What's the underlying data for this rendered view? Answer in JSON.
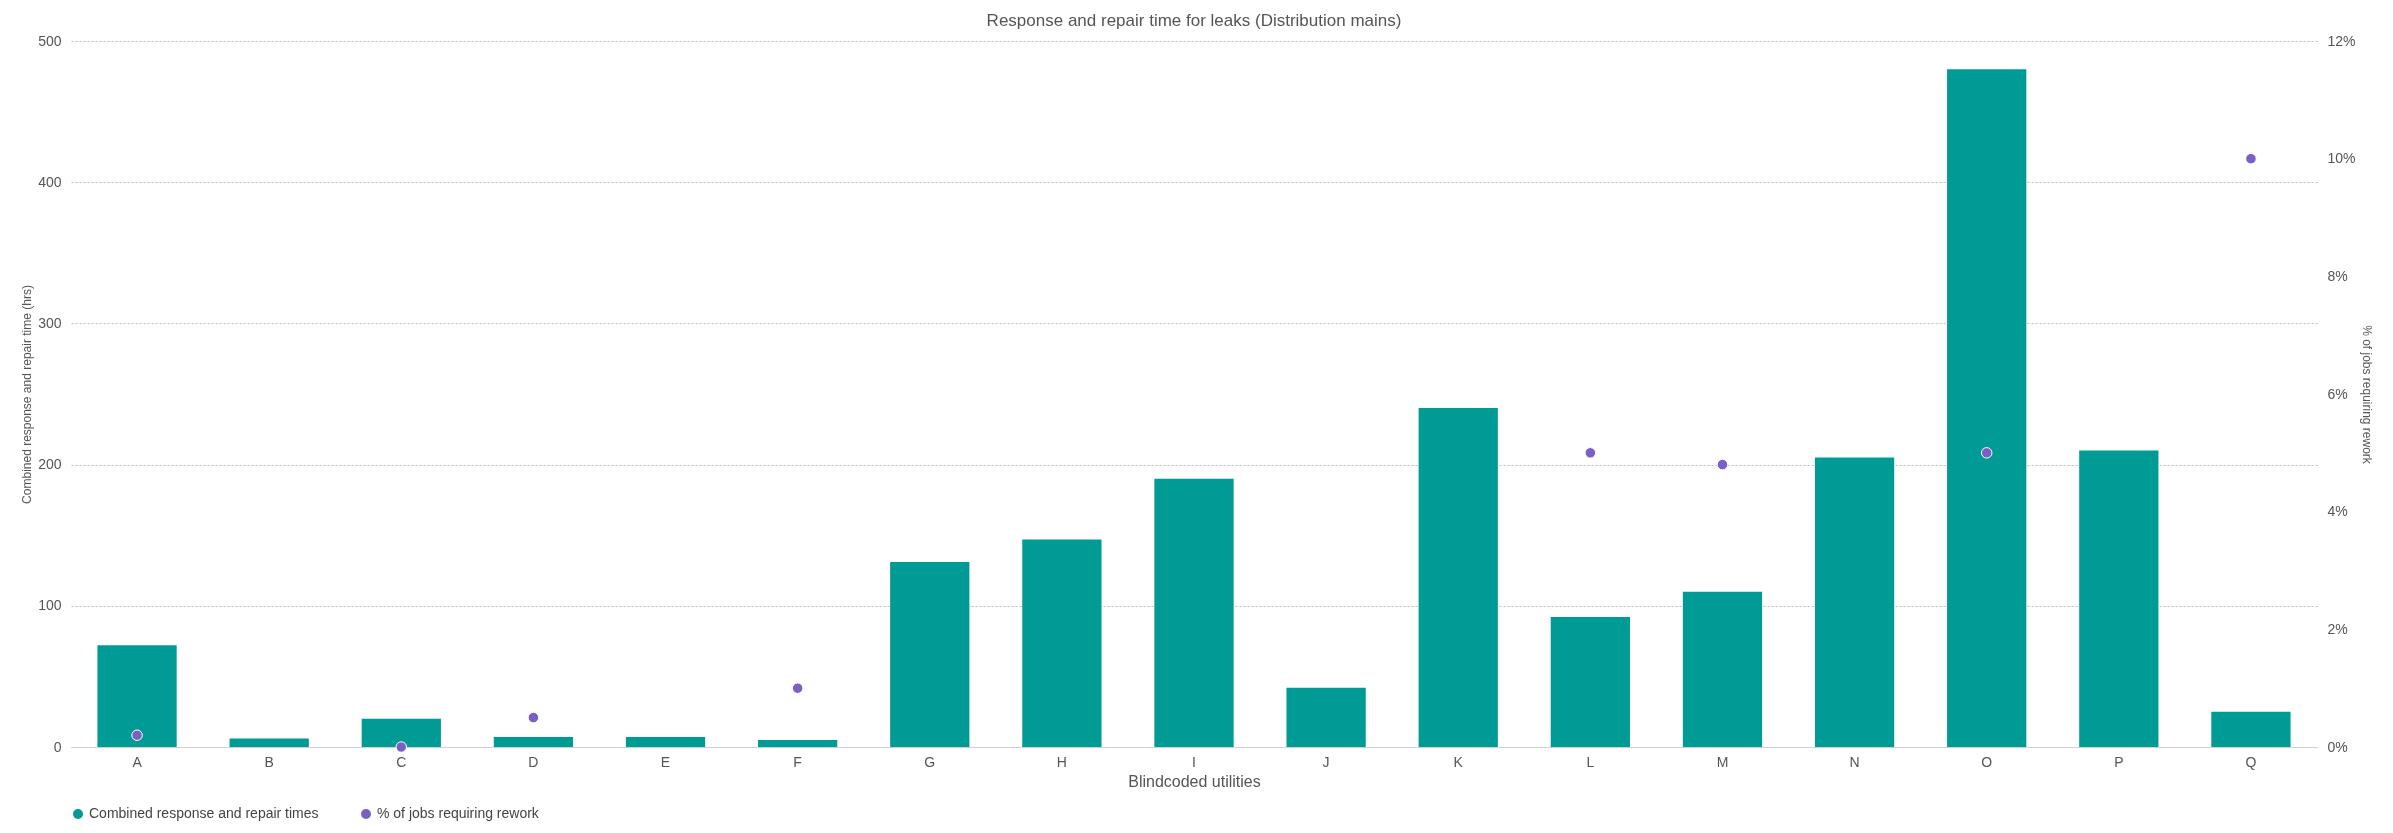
{
  "chart_data": {
    "type": "bar",
    "title": "Response and repair time for leaks (Distribution mains)",
    "xlabel": "Blindcoded utilities",
    "ylabel": "Combined response and repair time (hrs)",
    "y2label": "% of jobs requiring rework",
    "categories": [
      "A",
      "B",
      "C",
      "D",
      "E",
      "F",
      "G",
      "H",
      "I",
      "J",
      "K",
      "L",
      "M",
      "N",
      "O",
      "P",
      "Q"
    ],
    "series": [
      {
        "name": "Combined response and repair times",
        "color": "#009b95",
        "values": [
          72,
          6,
          20,
          7,
          7,
          5,
          131,
          147,
          190,
          42,
          240,
          92,
          110,
          205,
          480,
          210,
          25
        ]
      },
      {
        "name": "% of jobs requiring rework",
        "type": "scatter",
        "axis": "y2",
        "color": "#7b5fc4",
        "values": [
          0.2,
          null,
          0,
          0.5,
          null,
          1.0,
          null,
          null,
          null,
          null,
          null,
          5.0,
          4.8,
          null,
          5.0,
          null,
          10.0
        ]
      }
    ],
    "ylim": [
      0,
      500
    ],
    "yticks": [
      0,
      100,
      200,
      300,
      400,
      500
    ],
    "y2lim": [
      0,
      12
    ],
    "y2ticks": [
      {
        "value": 0,
        "label": "0%"
      },
      {
        "value": 2,
        "label": "2%"
      },
      {
        "value": 4,
        "label": "4%"
      },
      {
        "value": 6,
        "label": "6%"
      },
      {
        "value": 8,
        "label": "8%"
      },
      {
        "value": 10,
        "label": "10%"
      },
      {
        "value": 12,
        "label": "12%"
      }
    ],
    "grid": "y",
    "legend": "bottom",
    "marker": "circle"
  }
}
